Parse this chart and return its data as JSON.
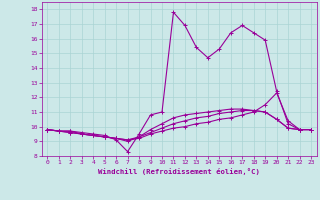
{
  "xlabel": "Windchill (Refroidissement éolien,°C)",
  "bg_color": "#cce8e8",
  "line_color": "#990099",
  "marker": "+",
  "markersize": 3,
  "linewidth": 0.8,
  "xlim": [
    -0.5,
    23.5
  ],
  "ylim": [
    8,
    18.5
  ],
  "xticks": [
    0,
    1,
    2,
    3,
    4,
    5,
    6,
    7,
    8,
    9,
    10,
    11,
    12,
    13,
    14,
    15,
    16,
    17,
    18,
    19,
    20,
    21,
    22,
    23
  ],
  "yticks": [
    8,
    9,
    10,
    11,
    12,
    13,
    14,
    15,
    16,
    17,
    18
  ],
  "grid_color": "#aad4d4",
  "series": [
    {
      "x": [
        0,
        1,
        2,
        3,
        4,
        5,
        6,
        7,
        8,
        9,
        10,
        11,
        12,
        13,
        14,
        15,
        16,
        17,
        18,
        19,
        20,
        21,
        22,
        23
      ],
      "y": [
        9.8,
        9.7,
        9.7,
        9.6,
        9.5,
        9.4,
        9.1,
        8.3,
        9.5,
        10.8,
        11.0,
        17.8,
        16.9,
        15.4,
        14.7,
        15.3,
        16.4,
        16.9,
        16.4,
        15.9,
        12.4,
        10.2,
        9.8,
        9.8
      ]
    },
    {
      "x": [
        0,
        1,
        2,
        3,
        4,
        5,
        6,
        7,
        8,
        9,
        10,
        11,
        12,
        13,
        14,
        15,
        16,
        17,
        18,
        19,
        20,
        21,
        22,
        23
      ],
      "y": [
        9.8,
        9.7,
        9.7,
        9.5,
        9.4,
        9.3,
        9.2,
        9.0,
        9.3,
        9.8,
        10.2,
        10.6,
        10.8,
        10.9,
        11.0,
        11.1,
        11.2,
        11.2,
        11.1,
        11.0,
        10.5,
        9.9,
        9.8,
        9.8
      ]
    },
    {
      "x": [
        0,
        1,
        2,
        3,
        4,
        5,
        6,
        7,
        8,
        9,
        10,
        11,
        12,
        13,
        14,
        15,
        16,
        17,
        18,
        19,
        20,
        21,
        22,
        23
      ],
      "y": [
        9.8,
        9.7,
        9.6,
        9.5,
        9.4,
        9.3,
        9.2,
        9.1,
        9.3,
        9.6,
        9.9,
        10.2,
        10.4,
        10.6,
        10.7,
        10.9,
        11.0,
        11.1,
        11.1,
        11.0,
        10.5,
        9.9,
        9.8,
        9.8
      ]
    },
    {
      "x": [
        0,
        1,
        2,
        3,
        4,
        5,
        6,
        7,
        8,
        9,
        10,
        11,
        12,
        13,
        14,
        15,
        16,
        17,
        18,
        19,
        20,
        21,
        22,
        23
      ],
      "y": [
        9.8,
        9.7,
        9.6,
        9.5,
        9.4,
        9.3,
        9.2,
        9.1,
        9.2,
        9.5,
        9.7,
        9.9,
        10.0,
        10.2,
        10.3,
        10.5,
        10.6,
        10.8,
        11.0,
        11.5,
        12.3,
        10.4,
        9.8,
        9.8
      ]
    }
  ]
}
